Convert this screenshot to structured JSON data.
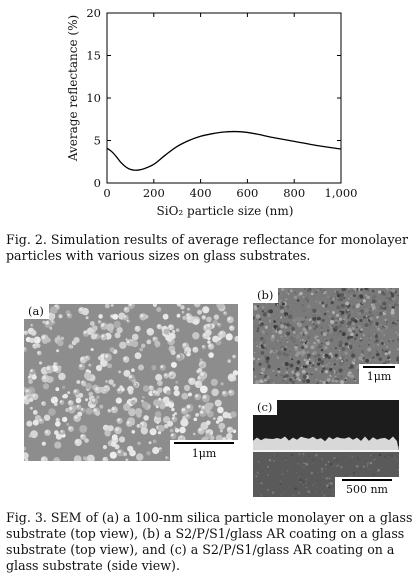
{
  "figure2": {
    "chart_data": {
      "type": "line",
      "xlabel": "SiO₂ particle size (nm)",
      "ylabel": "Average reflectance (%)",
      "xlim": [
        0,
        1000
      ],
      "ylim": [
        0,
        20
      ],
      "xticks": [
        "0",
        "200",
        "400",
        "600",
        "800",
        "1,000"
      ],
      "yticks": [
        "0",
        "5",
        "10",
        "15",
        "20"
      ],
      "x": [
        0,
        20,
        40,
        60,
        80,
        100,
        120,
        140,
        160,
        200,
        250,
        300,
        350,
        400,
        450,
        500,
        550,
        600,
        650,
        700,
        800,
        900,
        1000
      ],
      "y": [
        4.1,
        3.7,
        3.1,
        2.4,
        1.9,
        1.6,
        1.5,
        1.55,
        1.7,
        2.2,
        3.3,
        4.3,
        5.0,
        5.5,
        5.8,
        6.0,
        6.05,
        5.95,
        5.7,
        5.4,
        4.9,
        4.4,
        4.0
      ],
      "grid": false
    },
    "caption": "Fig. 2. Simulation results of average reflectance for monolayer particles with various sizes on glass substrates."
  },
  "figure3": {
    "panels": [
      {
        "label": "(a)",
        "scale": "1μm"
      },
      {
        "label": "(b)",
        "scale": "1μm"
      },
      {
        "label": "(c)",
        "scale": "500 nm"
      }
    ],
    "caption": "Fig. 3. SEM of (a) a 100-nm silica particle monolayer on a glass substrate (top view), (b) a S2/P/S1/glass AR coating on a glass substrate (top view), and (c) a S2/P/S1/glass AR coating on a glass substrate (side view)."
  }
}
